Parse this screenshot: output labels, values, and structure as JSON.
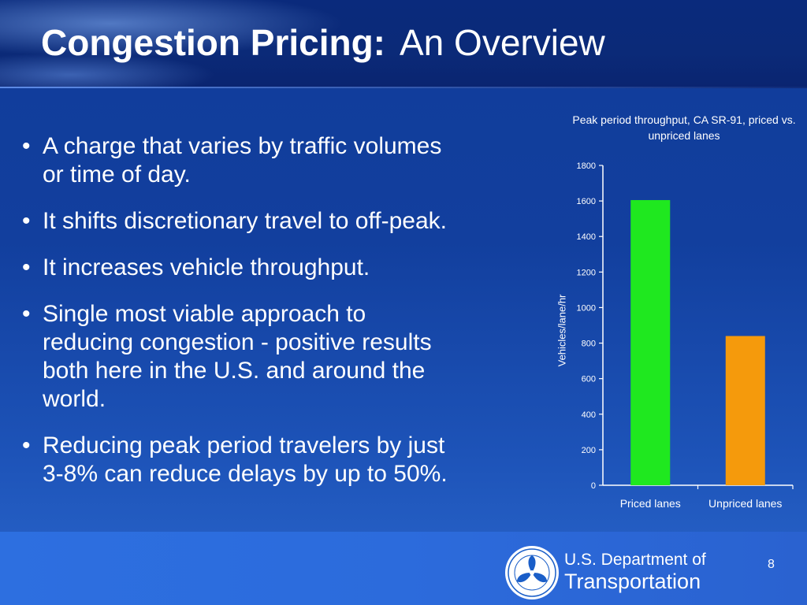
{
  "slide": {
    "title_bold": "Congestion Pricing:",
    "title_rest": "An Overview",
    "bullet_glyph": "•",
    "bullets": [
      {
        "lines": [
          "A charge that varies by traffic volumes",
          "or time of day."
        ]
      },
      {
        "lines": [
          "It shifts discretionary travel to off-peak."
        ]
      },
      {
        "lines": [
          "It increases vehicle throughput."
        ]
      },
      {
        "lines": [
          "Single most viable approach to",
          "reducing congestion - positive results",
          "both here in the U.S. and around the",
          "world."
        ]
      },
      {
        "lines": [
          "Reducing peak period travelers by just",
          "3-8% can reduce delays by up to 50%."
        ]
      }
    ],
    "page_number": "8"
  },
  "footer": {
    "dept_line1": "U.S. Department of",
    "dept_line2": "Transportation",
    "seal_icon": "dot-seal-icon"
  },
  "colors": {
    "priced_bar": "#1fe81f",
    "unpriced_bar": "#f59a0c",
    "background": "#123f9e",
    "footer": "#2c6bdc"
  },
  "chart_data": {
    "type": "bar",
    "title": "Peak period throughput, CA SR-91, priced vs. unpriced lanes",
    "ylabel": "Vehicles/lane/hr",
    "xlabel": "",
    "categories": [
      "Priced lanes",
      "Unpriced lanes"
    ],
    "values": [
      1605,
      840
    ],
    "ylim": [
      0,
      1800
    ],
    "yticks": [
      "0",
      "200",
      "400",
      "600",
      "800",
      "1000",
      "1200",
      "1400",
      "1600",
      "1800"
    ],
    "grid": false
  }
}
